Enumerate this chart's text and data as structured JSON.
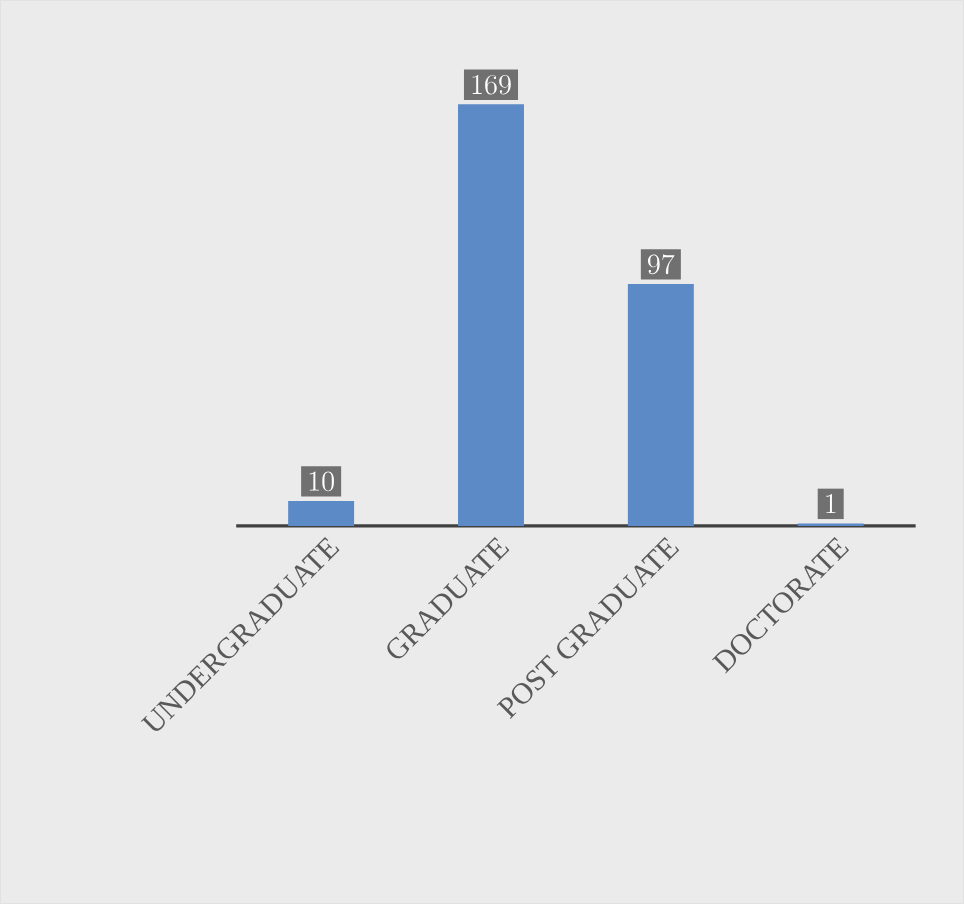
{
  "chart_data": {
    "type": "bar",
    "categories": [
      "UNDERGRADUATE",
      "GRADUATE",
      "POST GRADUATE",
      "DOCTORATE"
    ],
    "values": [
      10,
      169,
      97,
      1
    ],
    "color": "#5b8ac6",
    "data_labels": true
  }
}
